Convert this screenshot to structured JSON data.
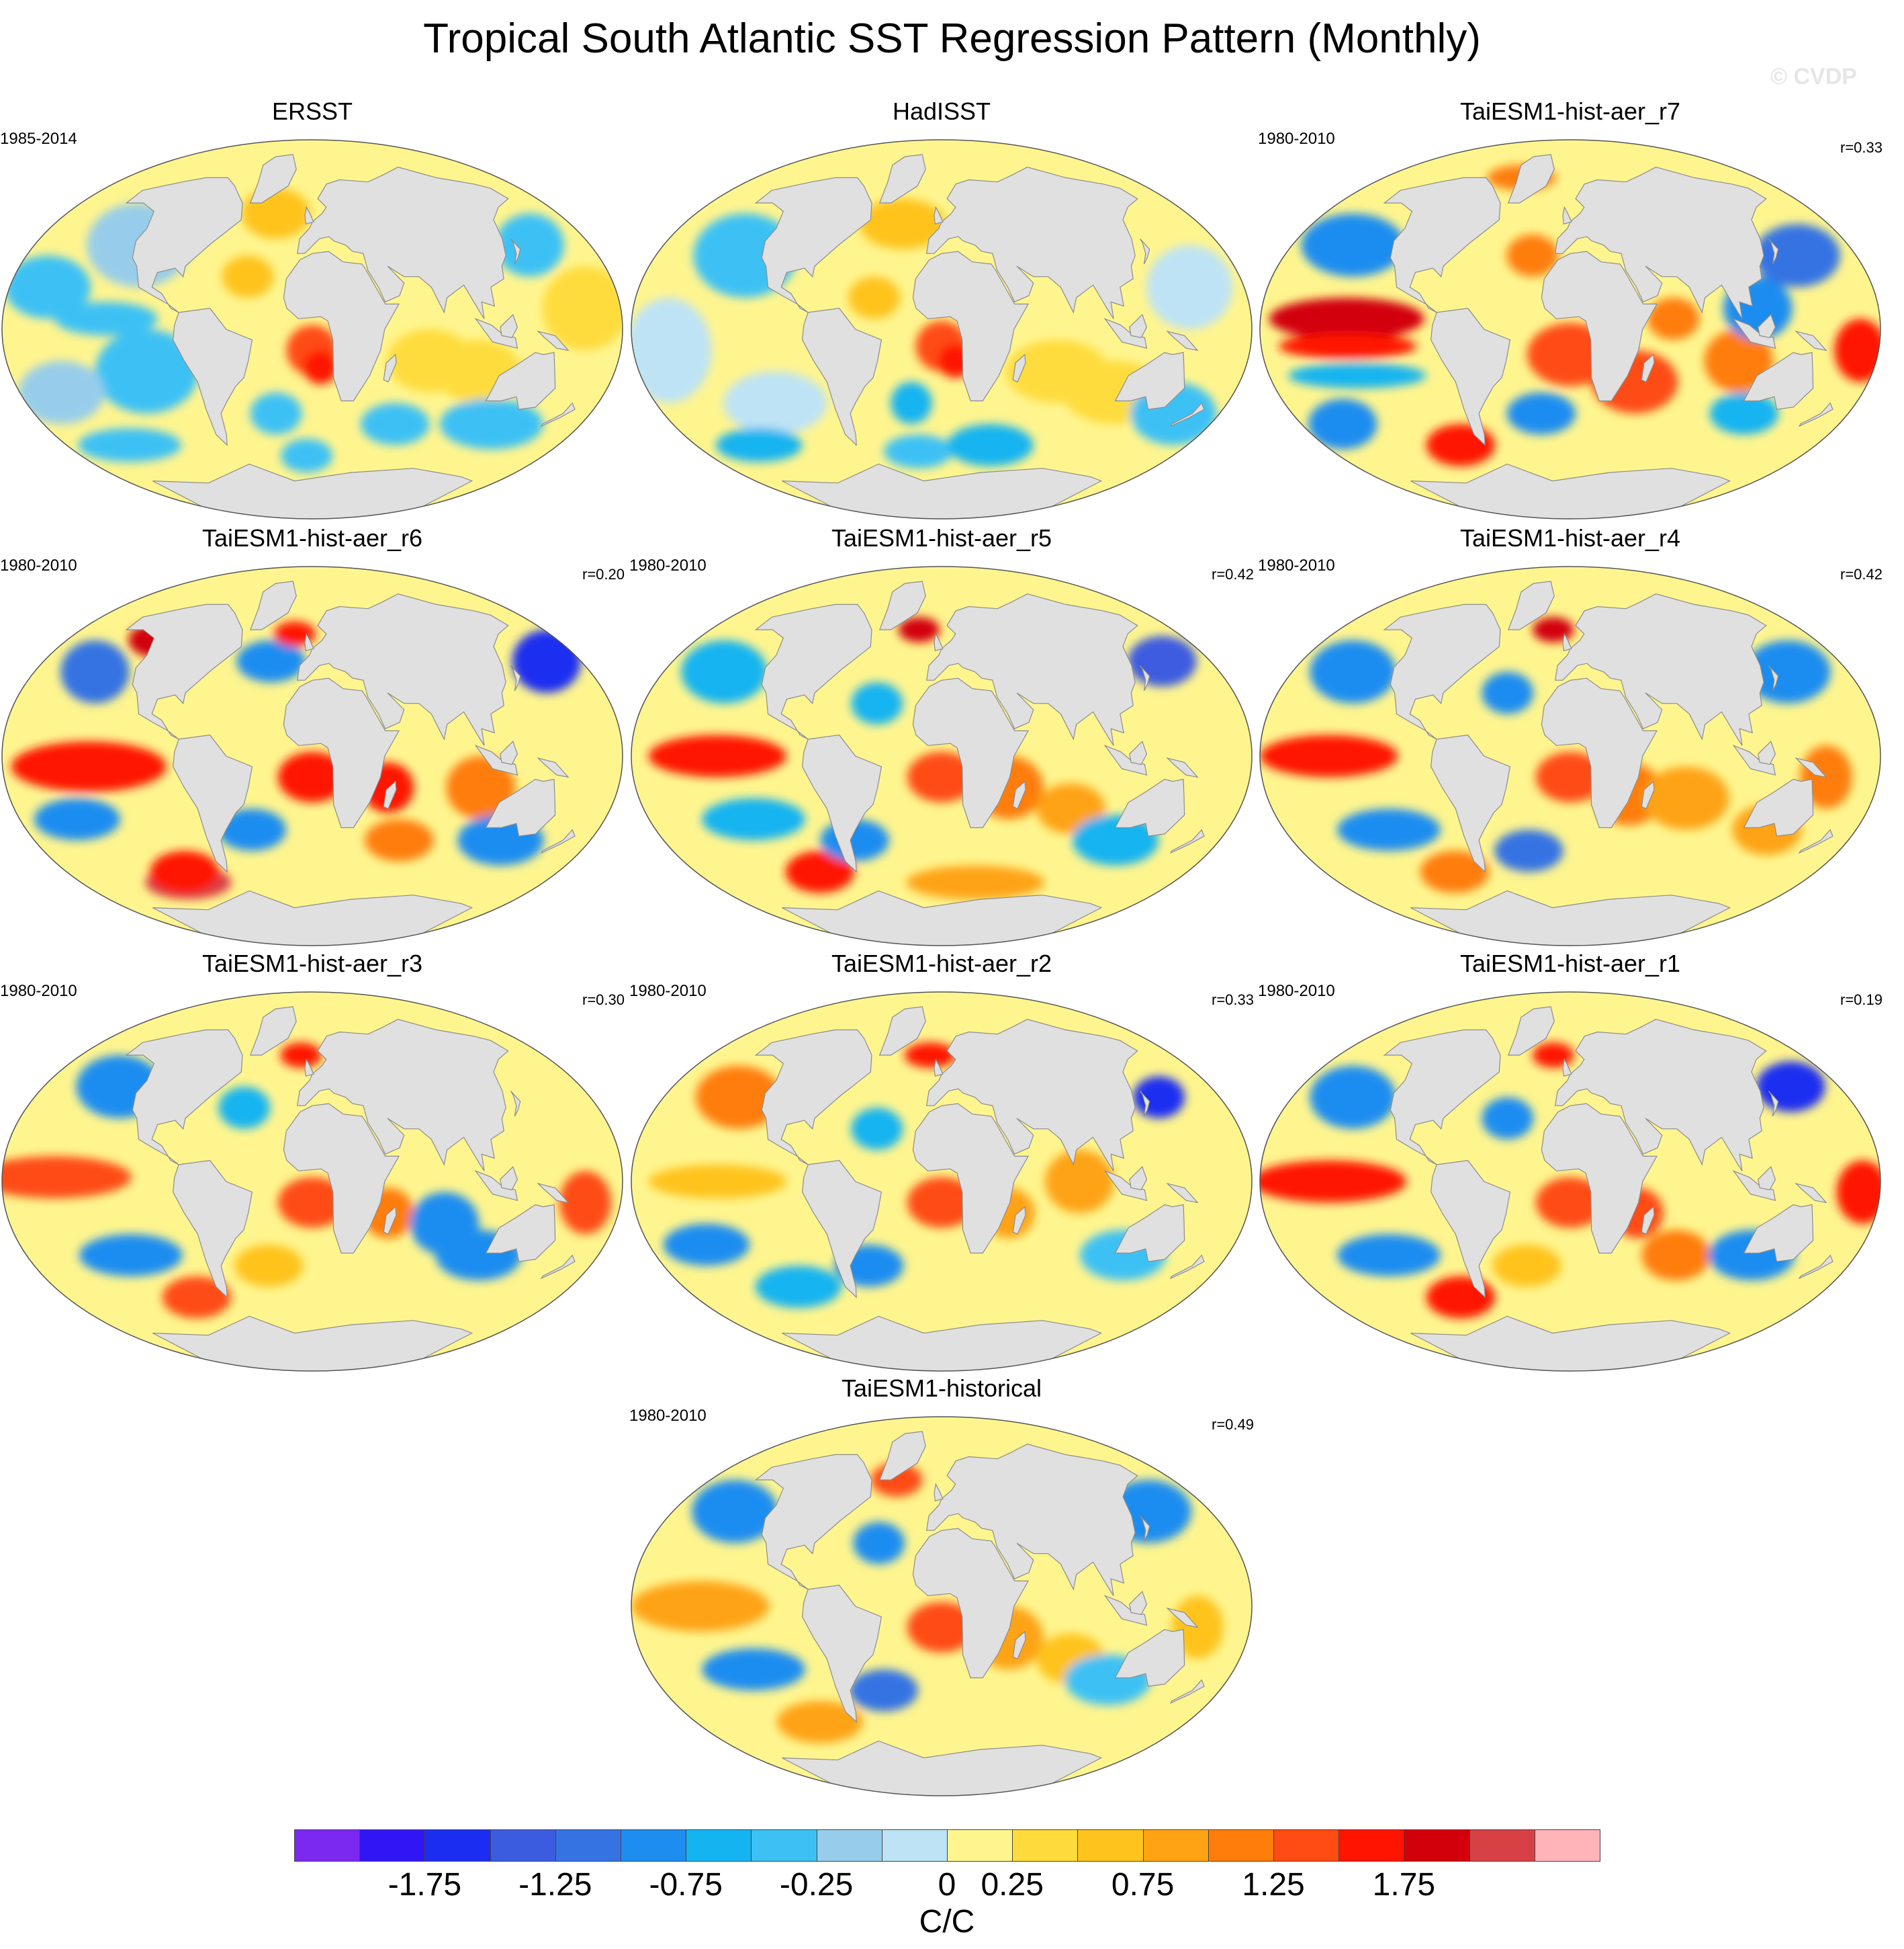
{
  "figure": {
    "title": "Tropical South Atlantic SST Regression Pattern (Monthly)",
    "watermark": "© CVDP"
  },
  "palette": {
    "ocean_base": "#fff58f",
    "land": "#e0e0e0",
    "coast": "#8c8c8c"
  },
  "panels": [
    {
      "title": "ERSST",
      "years": "1985-2014",
      "corr": "",
      "pattern": "obs_smooth"
    },
    {
      "title": "HadISST",
      "years": "",
      "corr": "",
      "pattern": "obs_noisy"
    },
    {
      "title": "TaiESM1-hist-aer_r7",
      "years": "1980-2010",
      "corr": "r=0.33",
      "pattern": "r7"
    },
    {
      "title": "TaiESM1-hist-aer_r6",
      "years": "1980-2010",
      "corr": "r=0.20",
      "pattern": "r6"
    },
    {
      "title": "TaiESM1-hist-aer_r5",
      "years": "1980-2010",
      "corr": "r=0.42",
      "pattern": "r5"
    },
    {
      "title": "TaiESM1-hist-aer_r4",
      "years": "1980-2010",
      "corr": "r=0.42",
      "pattern": "r4"
    },
    {
      "title": "TaiESM1-hist-aer_r3",
      "years": "1980-2010",
      "corr": "r=0.30",
      "pattern": "r3"
    },
    {
      "title": "TaiESM1-hist-aer_r2",
      "years": "1980-2010",
      "corr": "r=0.33",
      "pattern": "r2"
    },
    {
      "title": "TaiESM1-hist-aer_r1",
      "years": "1980-2010",
      "corr": "r=0.19",
      "pattern": "r1"
    },
    {
      "title": "TaiESM1-historical",
      "years": "1980-2010",
      "corr": "r=0.49",
      "pattern": "hist"
    }
  ],
  "colorbar": {
    "units": "C/C",
    "colors": [
      "#7b28f0",
      "#3016f5",
      "#1b2df0",
      "#3c5ce0",
      "#3573e3",
      "#1e8df0",
      "#14b4f0",
      "#3dc1f5",
      "#97cdea",
      "#bde3f5",
      "#fff58f",
      "#ffdc3c",
      "#ffc31e",
      "#ffa314",
      "#ff7d0a",
      "#ff4b14",
      "#ff1400",
      "#d2000a",
      "#d74146",
      "#ffb4b9"
    ],
    "tick_labels": [
      "-1.75",
      "-1.25",
      "-0.75",
      "-0.25",
      "0",
      "0.25",
      "0.75",
      "1.25",
      "1.75"
    ],
    "tick_boundaries": [
      2,
      4,
      6,
      8,
      10,
      11,
      13,
      15,
      17
    ]
  }
}
